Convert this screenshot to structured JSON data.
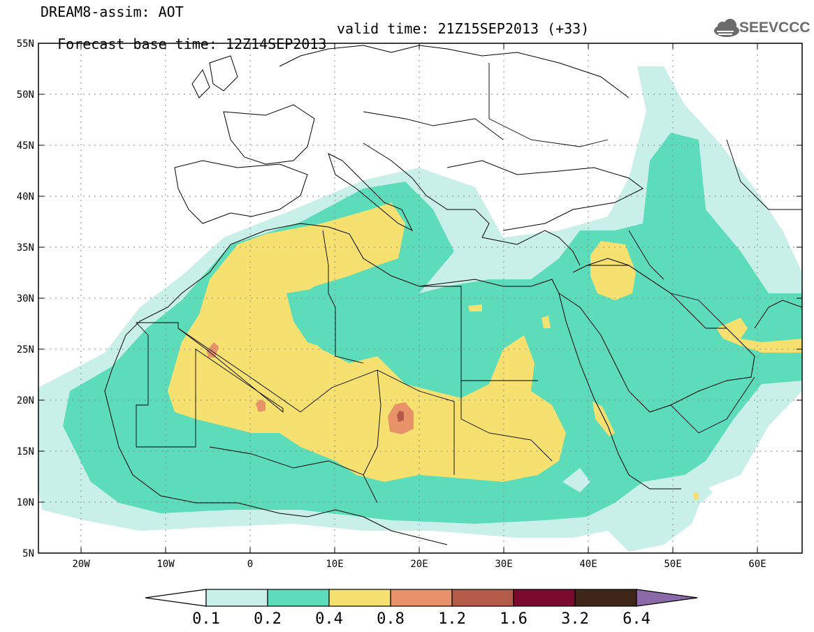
{
  "header": {
    "title": "DREAM8-assim: AOT",
    "base_time": "Forecast base time: 12Z14SEP2013",
    "valid_time": "valid time: 21Z15SEP2013 (+33)"
  },
  "logo": {
    "text": "SEEVCCC",
    "icon": "cloud-logo-icon",
    "color": "#6b6b6b"
  },
  "map": {
    "lat_range": [
      5,
      55
    ],
    "lon_range": [
      -25,
      65
    ],
    "lat_labels": [
      "55N",
      "50N",
      "45N",
      "40N",
      "35N",
      "30N",
      "25N",
      "20N",
      "15N",
      "10N",
      "5N"
    ],
    "lon_labels": [
      "20W",
      "10W",
      "0",
      "10E",
      "20E",
      "30E",
      "40E",
      "50E",
      "60E"
    ],
    "grid": "dotted"
  },
  "colorbar": {
    "labels": [
      "0.1",
      "0.2",
      "0.4",
      "0.8",
      "1.2",
      "1.6",
      "3.2",
      "6.4"
    ],
    "colors": [
      "#c8f0e8",
      "#5cdcb8",
      "#f5e070",
      "#e8926a",
      "#b45a48",
      "#7a0a2e",
      "#3e2618",
      "#8c6aaa"
    ],
    "under_color": "#ffffff"
  }
}
